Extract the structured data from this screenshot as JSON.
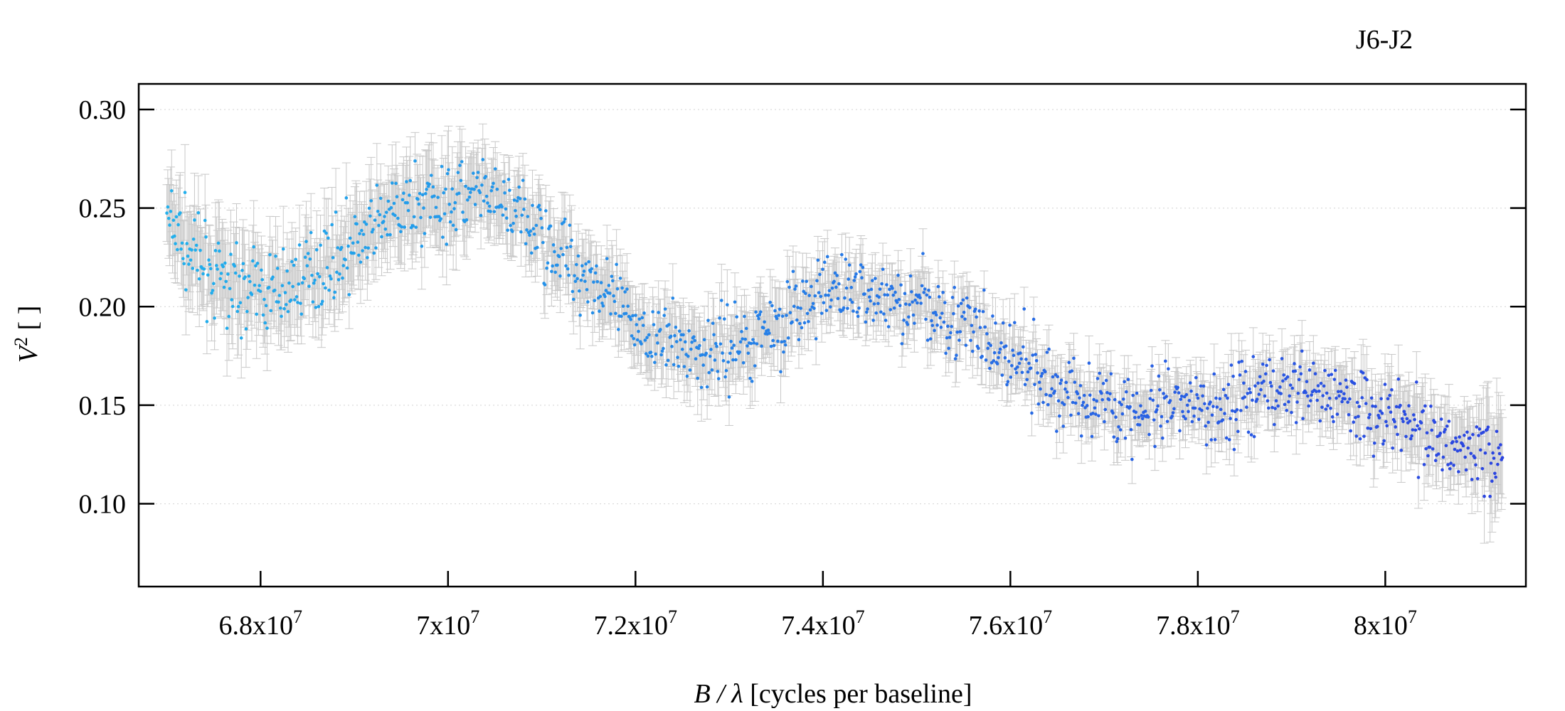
{
  "chart_data": {
    "type": "scatter",
    "title": "J6-J2",
    "xlabel_var": "B / λ",
    "xlabel_unit": "[cycles per baseline]",
    "ylabel_var": "V",
    "ylabel_sup": "2",
    "ylabel_unit": "[ ]",
    "xlim": [
      66700000,
      81500000
    ],
    "ylim": [
      0.058,
      0.313
    ],
    "x_ticks": [
      {
        "value": 68000000,
        "mant": "6.8x10",
        "exp": "7"
      },
      {
        "value": 70000000,
        "mant": "7x10",
        "exp": "7"
      },
      {
        "value": 72000000,
        "mant": "7.2x10",
        "exp": "7"
      },
      {
        "value": 74000000,
        "mant": "7.4x10",
        "exp": "7"
      },
      {
        "value": 76000000,
        "mant": "7.6x10",
        "exp": "7"
      },
      {
        "value": 78000000,
        "mant": "7.8x10",
        "exp": "7"
      },
      {
        "value": 80000000,
        "mant": "8x10",
        "exp": "7"
      }
    ],
    "y_ticks": [
      {
        "value": 0.1,
        "label": "0.10"
      },
      {
        "value": 0.15,
        "label": "0.15"
      },
      {
        "value": 0.2,
        "label": "0.20"
      },
      {
        "value": 0.25,
        "label": "0.25"
      },
      {
        "value": 0.3,
        "label": "0.30"
      }
    ],
    "grid": "horizontal dotted",
    "colors": {
      "point_start": "#22b0ec",
      "point_end": "#2a44e0",
      "errorbar": "#c8c8c8",
      "grid": "#d8d8d8",
      "axis": "#000000"
    },
    "series": [
      {
        "points": [
          [
            67000000,
            0.245,
            0.018
          ],
          [
            67150000,
            0.235,
            0.02
          ],
          [
            67300000,
            0.225,
            0.02
          ],
          [
            67500000,
            0.215,
            0.02
          ],
          [
            67700000,
            0.212,
            0.02
          ],
          [
            67900000,
            0.208,
            0.02
          ],
          [
            68100000,
            0.207,
            0.018
          ],
          [
            68300000,
            0.21,
            0.018
          ],
          [
            68500000,
            0.216,
            0.018
          ],
          [
            68700000,
            0.222,
            0.018
          ],
          [
            68900000,
            0.228,
            0.018
          ],
          [
            69100000,
            0.235,
            0.018
          ],
          [
            69300000,
            0.242,
            0.018
          ],
          [
            69500000,
            0.248,
            0.018
          ],
          [
            69700000,
            0.252,
            0.018
          ],
          [
            69900000,
            0.255,
            0.018
          ],
          [
            70100000,
            0.256,
            0.018
          ],
          [
            70300000,
            0.255,
            0.016
          ],
          [
            70500000,
            0.252,
            0.016
          ],
          [
            70700000,
            0.248,
            0.015
          ],
          [
            70900000,
            0.24,
            0.015
          ],
          [
            71100000,
            0.232,
            0.015
          ],
          [
            71300000,
            0.225,
            0.015
          ],
          [
            71500000,
            0.216,
            0.015
          ],
          [
            71700000,
            0.205,
            0.015
          ],
          [
            71900000,
            0.195,
            0.015
          ],
          [
            72100000,
            0.187,
            0.015
          ],
          [
            72300000,
            0.182,
            0.015
          ],
          [
            72500000,
            0.18,
            0.015
          ],
          [
            72700000,
            0.178,
            0.015
          ],
          [
            72900000,
            0.178,
            0.015
          ],
          [
            73100000,
            0.181,
            0.015
          ],
          [
            73300000,
            0.186,
            0.015
          ],
          [
            73500000,
            0.192,
            0.014
          ],
          [
            73700000,
            0.197,
            0.014
          ],
          [
            73900000,
            0.203,
            0.012
          ],
          [
            74100000,
            0.208,
            0.012
          ],
          [
            74300000,
            0.21,
            0.012
          ],
          [
            74500000,
            0.207,
            0.012
          ],
          [
            74700000,
            0.204,
            0.012
          ],
          [
            74900000,
            0.202,
            0.012
          ],
          [
            75100000,
            0.2,
            0.012
          ],
          [
            75300000,
            0.197,
            0.012
          ],
          [
            75500000,
            0.192,
            0.012
          ],
          [
            75700000,
            0.184,
            0.012
          ],
          [
            75900000,
            0.176,
            0.012
          ],
          [
            76100000,
            0.17,
            0.012
          ],
          [
            76300000,
            0.163,
            0.012
          ],
          [
            76500000,
            0.158,
            0.012
          ],
          [
            76700000,
            0.155,
            0.012
          ],
          [
            76900000,
            0.153,
            0.012
          ],
          [
            77100000,
            0.15,
            0.012
          ],
          [
            77300000,
            0.146,
            0.012
          ],
          [
            77500000,
            0.145,
            0.012
          ],
          [
            77700000,
            0.146,
            0.012
          ],
          [
            77900000,
            0.147,
            0.012
          ],
          [
            78100000,
            0.149,
            0.012
          ],
          [
            78300000,
            0.151,
            0.013
          ],
          [
            78500000,
            0.153,
            0.013
          ],
          [
            78700000,
            0.156,
            0.013
          ],
          [
            78900000,
            0.159,
            0.013
          ],
          [
            79100000,
            0.16,
            0.013
          ],
          [
            79300000,
            0.159,
            0.013
          ],
          [
            79500000,
            0.156,
            0.013
          ],
          [
            79700000,
            0.152,
            0.014
          ],
          [
            79900000,
            0.147,
            0.015
          ],
          [
            80100000,
            0.144,
            0.015
          ],
          [
            80300000,
            0.141,
            0.015
          ],
          [
            80500000,
            0.136,
            0.015
          ],
          [
            80700000,
            0.13,
            0.015
          ],
          [
            80900000,
            0.127,
            0.017
          ],
          [
            81100000,
            0.125,
            0.02
          ],
          [
            81250000,
            0.125,
            0.025
          ]
        ]
      }
    ]
  }
}
